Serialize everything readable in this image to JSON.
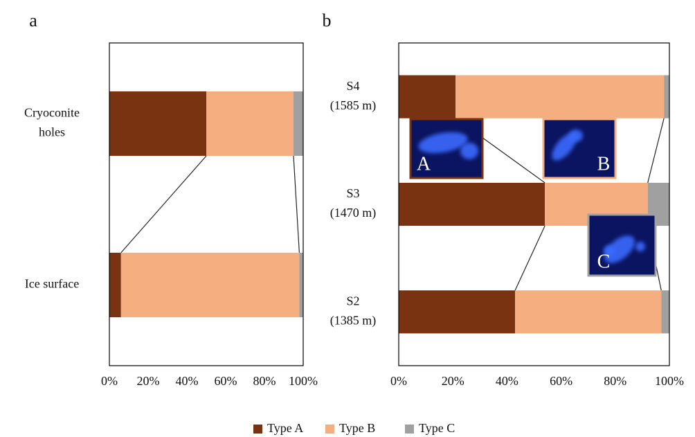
{
  "chart_data": [
    {
      "type": "bar",
      "orientation": "horizontal",
      "stacked": true,
      "title": "a",
      "categories": [
        [
          "Cryoconite",
          "holes"
        ],
        [
          "Ice surface"
        ]
      ],
      "series": [
        {
          "name": "Type A",
          "color": "#7a3310",
          "values": [
            50,
            6
          ]
        },
        {
          "name": "Type B",
          "color": "#f4ae80",
          "values": [
            45,
            92
          ]
        },
        {
          "name": "Type C",
          "color": "#a0a0a0",
          "values": [
            5,
            2
          ]
        }
      ],
      "xlim": [
        0,
        100
      ],
      "xticks": [
        {
          "value": 0,
          "label": "0%"
        },
        {
          "value": 20,
          "label": "20%"
        },
        {
          "value": 40,
          "label": "40%"
        },
        {
          "value": 60,
          "label": "60%"
        },
        {
          "value": 80,
          "label": "80%"
        },
        {
          "value": 100,
          "label": "100%"
        }
      ],
      "legend": "bottom"
    },
    {
      "type": "bar",
      "orientation": "horizontal",
      "stacked": true,
      "title": "b",
      "categories": [
        [
          "S4",
          "(1585 m)"
        ],
        [
          "S3",
          "(1470 m)"
        ],
        [
          "S2",
          "(1385 m)"
        ]
      ],
      "series": [
        {
          "color": "#7a3310",
          "values": [
            21,
            54,
            43
          ]
        },
        {
          "color": "#f4ae80",
          "values": [
            77,
            38,
            54
          ]
        },
        {
          "color": "#a0a0a0",
          "values": [
            2,
            8,
            3
          ]
        }
      ],
      "xlim": [
        0,
        100
      ],
      "xticks": [
        {
          "value": 0,
          "label": "0%"
        },
        {
          "value": 20,
          "label": "20%"
        },
        {
          "value": 40,
          "label": "40%"
        },
        {
          "value": 60,
          "label": "60%"
        },
        {
          "value": 80,
          "label": "80%"
        },
        {
          "value": 100,
          "label": "100%"
        }
      ],
      "inset_labels": [
        "A",
        "B",
        "C"
      ]
    }
  ]
}
